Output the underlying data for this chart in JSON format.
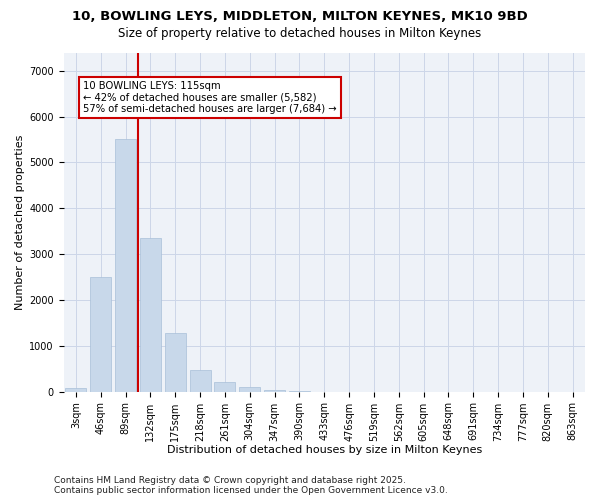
{
  "title1": "10, BOWLING LEYS, MIDDLETON, MILTON KEYNES, MK10 9BD",
  "title2": "Size of property relative to detached houses in Milton Keynes",
  "xlabel": "Distribution of detached houses by size in Milton Keynes",
  "ylabel": "Number of detached properties",
  "bar_color": "#c8d8ea",
  "bar_edge_color": "#a8c0d8",
  "grid_color": "#ccd6e8",
  "bg_color": "#eef2f8",
  "categories": [
    "3sqm",
    "46sqm",
    "89sqm",
    "132sqm",
    "175sqm",
    "218sqm",
    "261sqm",
    "304sqm",
    "347sqm",
    "390sqm",
    "433sqm",
    "476sqm",
    "519sqm",
    "562sqm",
    "605sqm",
    "648sqm",
    "691sqm",
    "734sqm",
    "777sqm",
    "820sqm",
    "863sqm"
  ],
  "values": [
    80,
    2500,
    5520,
    3350,
    1280,
    480,
    220,
    110,
    30,
    5,
    2,
    0,
    0,
    0,
    0,
    0,
    0,
    0,
    0,
    0,
    0
  ],
  "vline_index": 2.5,
  "vline_color": "#cc0000",
  "annotation_text": "10 BOWLING LEYS: 115sqm\n← 42% of detached houses are smaller (5,582)\n57% of semi-detached houses are larger (7,684) →",
  "ylim": [
    0,
    7400
  ],
  "yticks": [
    0,
    1000,
    2000,
    3000,
    4000,
    5000,
    6000,
    7000
  ],
  "footer": "Contains HM Land Registry data © Crown copyright and database right 2025.\nContains public sector information licensed under the Open Government Licence v3.0.",
  "title_fontsize": 9.5,
  "subtitle_fontsize": 8.5,
  "axis_label_fontsize": 8,
  "tick_fontsize": 7,
  "footer_fontsize": 6.5
}
